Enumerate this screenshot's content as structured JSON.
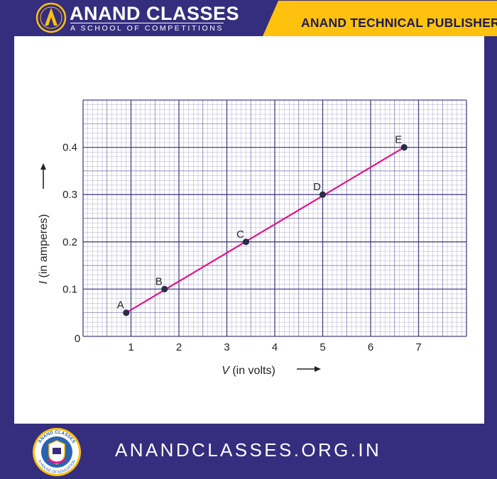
{
  "header": {
    "brand_title": "ANAND CLASSES",
    "brand_subtitle": "A SCHOOL OF COMPETITIONS",
    "publisher": "ANAND TECHNICAL PUBLISHERS",
    "header_color": "#352d7e",
    "accent_color": "#fec20e"
  },
  "footer": {
    "url": "ANANDCLASSES.ORG.IN",
    "logo_text_top": "ANAND CLASSES",
    "logo_text_bottom": "A HOUSE OF EDUCATION"
  },
  "chart_data": {
    "type": "line",
    "xlabel_symbol": "V",
    "xlabel_rest": " (in volts)",
    "ylabel_symbol": "I",
    "ylabel_rest": " (in amperes)",
    "origin_label": "0",
    "xlim": [
      0,
      8
    ],
    "ylim": [
      0,
      0.5
    ],
    "x_ticks": [
      {
        "value": 1,
        "label": "1"
      },
      {
        "value": 2,
        "label": "2"
      },
      {
        "value": 3,
        "label": "3"
      },
      {
        "value": 4,
        "label": "4"
      },
      {
        "value": 5,
        "label": "5"
      },
      {
        "value": 6,
        "label": "6"
      },
      {
        "value": 7,
        "label": "7"
      }
    ],
    "y_ticks": [
      {
        "value": 0.1,
        "label": "0.1"
      },
      {
        "value": 0.2,
        "label": "0.2"
      },
      {
        "value": 0.3,
        "label": "0.3"
      },
      {
        "value": 0.4,
        "label": "0.4"
      }
    ],
    "points": [
      {
        "label": "A",
        "x": 0.9,
        "y": 0.05
      },
      {
        "label": "B",
        "x": 1.7,
        "y": 0.1
      },
      {
        "label": "C",
        "x": 3.4,
        "y": 0.2
      },
      {
        "label": "D",
        "x": 5.0,
        "y": 0.3
      },
      {
        "label": "E",
        "x": 6.7,
        "y": 0.4
      }
    ],
    "grid": true,
    "line_color": "#e0168a",
    "grid_color": "#352d7e"
  }
}
